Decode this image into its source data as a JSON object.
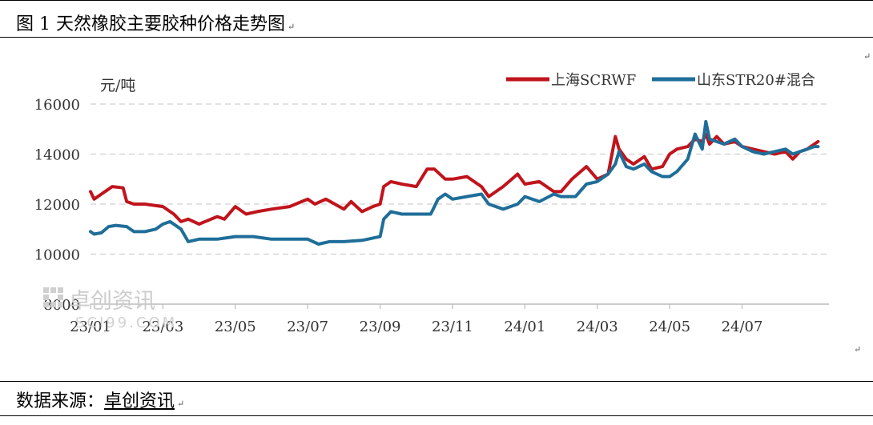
{
  "title": "图 1 天然橡胶主要胶种价格走势图",
  "source": {
    "prefix": "数据来源：",
    "name": "卓创资讯"
  },
  "watermark": {
    "name": "卓创资讯",
    "url": "SCI99.COM"
  },
  "paragraph_mark": "↵",
  "colors": {
    "series1": "#C0141C",
    "series2": "#1F6E99",
    "grid": "#D0D0D0",
    "axis": "#BBBBBB",
    "text": "#333333",
    "watermark": "#CCCCCC"
  },
  "chart_data": {
    "type": "line",
    "ylabel": "元/吨",
    "ylim": [
      8000,
      16800
    ],
    "yticks": [
      8000,
      10000,
      12000,
      14000,
      16000
    ],
    "grid": "horizontal-dashed",
    "legend_position": "top-right",
    "xlim": [
      0,
      20.4
    ],
    "xtick_labels": [
      "23/01",
      "23/03",
      "23/05",
      "23/07",
      "23/09",
      "23/11",
      "24/01",
      "24/03",
      "24/05",
      "24/07"
    ],
    "xtick_positions": [
      0,
      2,
      4,
      6,
      8,
      10,
      12,
      14,
      16,
      18
    ],
    "series": [
      {
        "name": "上海SCRWF",
        "x": [
          0,
          0.1,
          0.3,
          0.5,
          0.6,
          0.9,
          1.0,
          1.2,
          1.5,
          2.0,
          2.3,
          2.5,
          2.7,
          3.0,
          3.5,
          3.7,
          4.0,
          4.3,
          4.6,
          5.0,
          5.5,
          6.0,
          6.2,
          6.5,
          7.0,
          7.2,
          7.5,
          7.8,
          8.0,
          8.1,
          8.3,
          8.6,
          9.0,
          9.3,
          9.5,
          9.8,
          10.0,
          10.4,
          10.8,
          11.0,
          11.4,
          11.8,
          12.0,
          12.4,
          12.8,
          13.0,
          13.3,
          13.7,
          14.0,
          14.3,
          14.5,
          14.6,
          14.8,
          15.0,
          15.3,
          15.5,
          15.8,
          16.0,
          16.2,
          16.5,
          16.7,
          16.9,
          17.0,
          17.1,
          17.3,
          17.5,
          17.8,
          18.0,
          18.3,
          18.6,
          18.9,
          19.2,
          19.4,
          19.6,
          19.8,
          20.0,
          20.1
        ],
        "values": [
          12500,
          12200,
          12400,
          12600,
          12700,
          12650,
          12100,
          12000,
          12000,
          11900,
          11600,
          11300,
          11400,
          11200,
          11500,
          11400,
          11900,
          11600,
          11700,
          11800,
          11900,
          12200,
          12000,
          12200,
          11800,
          12100,
          11700,
          11900,
          12000,
          12700,
          12900,
          12800,
          12700,
          13400,
          13400,
          13000,
          13000,
          13100,
          12700,
          12300,
          12700,
          13200,
          12800,
          12900,
          12500,
          12500,
          13000,
          13500,
          13000,
          13200,
          14700,
          14200,
          13800,
          13600,
          13900,
          13400,
          13500,
          14000,
          14200,
          14300,
          14600,
          14500,
          14800,
          14400,
          14700,
          14400,
          14500,
          14300,
          14200,
          14100,
          14000,
          14100,
          13800,
          14100,
          14200,
          14400,
          14500
        ]
      },
      {
        "name": "山东STR20#混合",
        "x": [
          0,
          0.1,
          0.3,
          0.5,
          0.7,
          1.0,
          1.2,
          1.5,
          1.8,
          2.0,
          2.2,
          2.5,
          2.7,
          3.0,
          3.5,
          4.0,
          4.5,
          5.0,
          5.5,
          6.0,
          6.3,
          6.6,
          7.0,
          7.5,
          8.0,
          8.1,
          8.3,
          8.6,
          9.0,
          9.4,
          9.6,
          9.8,
          10.0,
          10.4,
          10.8,
          11.0,
          11.4,
          11.8,
          12.0,
          12.4,
          12.8,
          13.0,
          13.4,
          13.7,
          14.0,
          14.3,
          14.5,
          14.6,
          14.8,
          15.0,
          15.3,
          15.5,
          15.8,
          16.0,
          16.2,
          16.5,
          16.7,
          16.9,
          17.0,
          17.1,
          17.3,
          17.5,
          17.8,
          18.0,
          18.3,
          18.6,
          18.9,
          19.2,
          19.4,
          19.6,
          19.8,
          20.0,
          20.1
        ],
        "values": [
          10900,
          10800,
          10850,
          11100,
          11150,
          11100,
          10900,
          10900,
          11000,
          11200,
          11300,
          11000,
          10500,
          10600,
          10600,
          10700,
          10700,
          10600,
          10600,
          10600,
          10400,
          10500,
          10500,
          10550,
          10700,
          11400,
          11700,
          11600,
          11600,
          11600,
          12200,
          12400,
          12200,
          12300,
          12400,
          12000,
          11800,
          12000,
          12300,
          12100,
          12400,
          12300,
          12300,
          12800,
          12900,
          13200,
          13600,
          14100,
          13500,
          13400,
          13600,
          13300,
          13100,
          13100,
          13300,
          13800,
          14800,
          14200,
          15300,
          14600,
          14500,
          14400,
          14600,
          14300,
          14100,
          14000,
          14100,
          14200,
          14000,
          14100,
          14200,
          14300,
          14300
        ]
      }
    ]
  }
}
